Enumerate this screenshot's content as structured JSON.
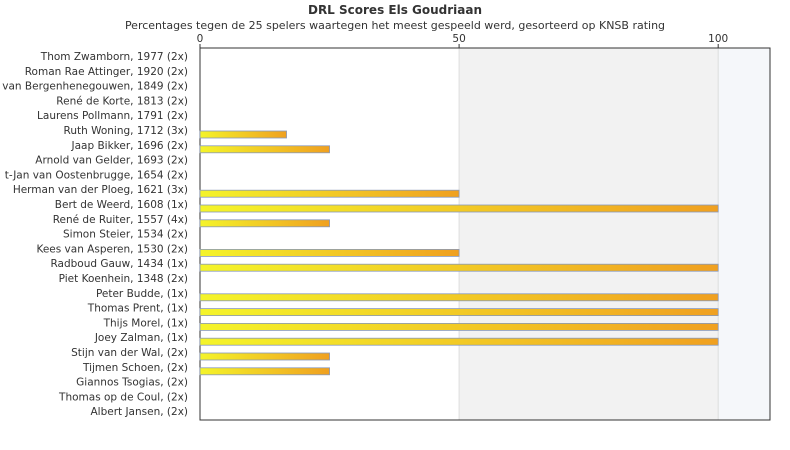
{
  "chart_data": {
    "type": "bar",
    "orientation": "horizontal",
    "title": "DRL Scores Els Goudriaan",
    "subtitle": "Percentages tegen de 25 spelers waartegen het meest gespeeld werd, gesorteerd op KNSB rating",
    "xlim": [
      0,
      110
    ],
    "xticks": [
      0,
      50,
      100
    ],
    "grid": true,
    "categories": [
      "Thom Zwamborn, 1977 (2x)",
      "Roman Rae Attinger, 1920 (2x)",
      "van Bergenhenegouwen, 1849 (2x)",
      "René de Korte, 1813 (2x)",
      "Laurens Pollmann, 1791 (2x)",
      "Ruth Woning, 1712 (3x)",
      "Jaap Bikker, 1696 (2x)",
      "Arnold van Gelder, 1693 (2x)",
      "t-Jan van Oostenbrugge, 1654 (2x)",
      "Herman van der Ploeg, 1621 (3x)",
      "Bert de Weerd, 1608 (1x)",
      "René de Ruiter, 1557 (4x)",
      "Simon Steier, 1534 (2x)",
      "Kees van Asperen, 1530 (2x)",
      "Radboud Gauw, 1434 (1x)",
      "Piet Koenhein, 1348 (2x)",
      "Peter Budde,  (1x)",
      "Thomas Prent,  (1x)",
      "Thijs Morel,  (1x)",
      "Joey Zalman,  (1x)",
      "Stijn van der Wal,  (2x)",
      "Tijmen Schoen,  (2x)",
      "Giannos Tsogias,  (2x)",
      "Thomas op de Coul,  (2x)",
      "Albert Jansen,  (2x)"
    ],
    "values": [
      0,
      0,
      0,
      0,
      0,
      16.7,
      25,
      0,
      0,
      50,
      100,
      25,
      0,
      50,
      100,
      0,
      100,
      100,
      100,
      100,
      25,
      25,
      0,
      0,
      0
    ],
    "colors": {
      "bar_left": "#f4f42a",
      "bar_right": "#f0a020",
      "bar_border": "#8899bb",
      "band_50_100": "#f2f2f2",
      "band_100_plus": "#f5f7fa",
      "grid": "#dddddd",
      "axis": "#333333"
    }
  }
}
